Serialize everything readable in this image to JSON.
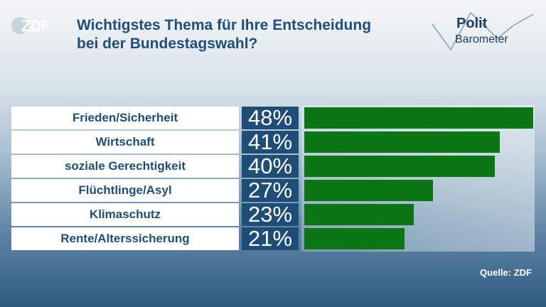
{
  "header": {
    "logo_text": "ZDF",
    "title_line1": "Wichtigstes Thema für Ihre Entscheidung",
    "title_line2": "bei der Bundestagswahl?",
    "brand_line1": "Polit",
    "brand_line2": "Barometer"
  },
  "footer": {
    "source": "Quelle: ZDF"
  },
  "colors": {
    "bar": "#0b7613",
    "percent_box": "#1e4e78",
    "title": "#1f4e7a"
  },
  "chart_data": {
    "type": "bar",
    "orientation": "horizontal",
    "title": "Wichtigstes Thema für Ihre Entscheidung bei der Bundestagswahl?",
    "categories": [
      "Frieden/Sicherheit",
      "Wirtschaft",
      "soziale Gerechtigkeit",
      "Flüchtlinge/Asyl",
      "Klimaschutz",
      "Rente/Alterssicherung"
    ],
    "values": [
      48,
      41,
      40,
      27,
      23,
      21
    ],
    "value_labels": [
      "48%",
      "41%",
      "40%",
      "27%",
      "23%",
      "21%"
    ],
    "xlim": [
      0,
      48
    ],
    "grid": false,
    "legend": "none"
  }
}
